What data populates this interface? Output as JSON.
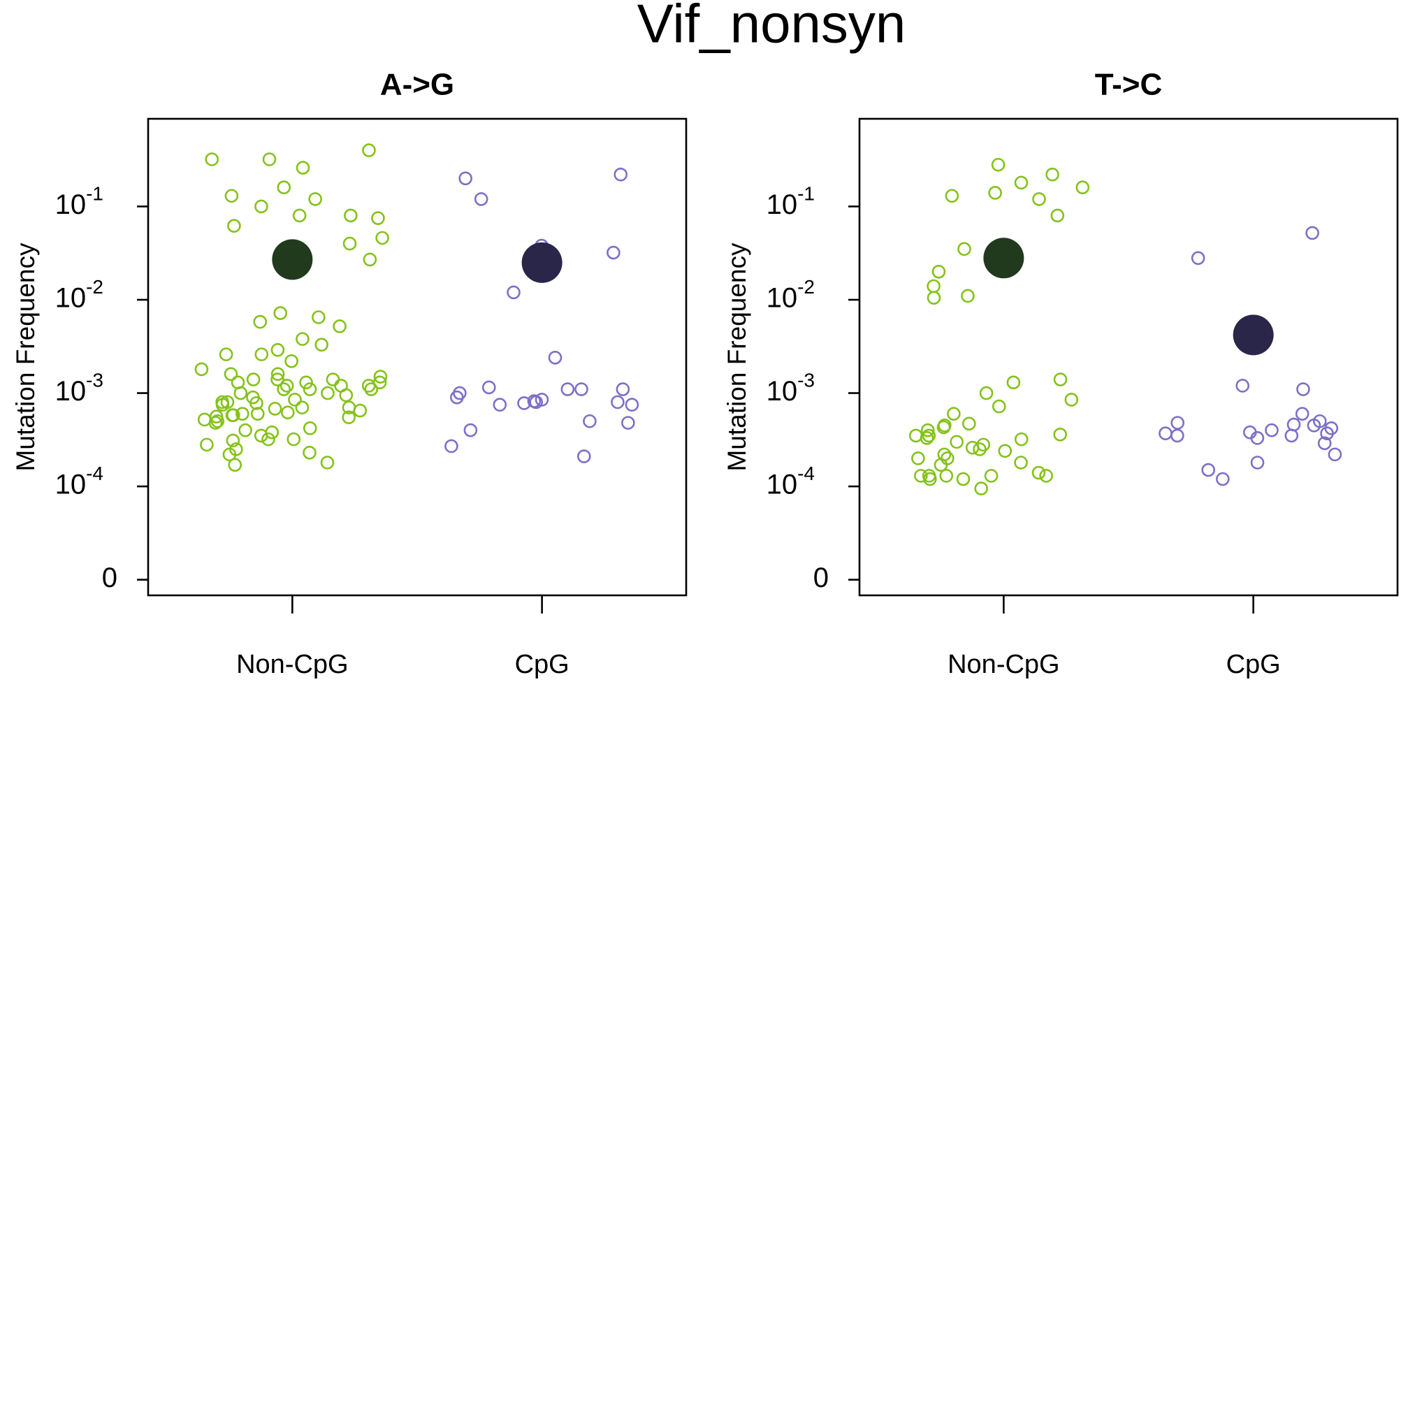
{
  "title": "Vif_nonsyn",
  "chart_data": [
    {
      "type": "strip",
      "title": "A->G",
      "ylabel": "Mutation Frequency",
      "log_scale": true,
      "categories": [
        "Non-CpG",
        "CpG"
      ],
      "ylim": [
        6.8e-06,
        0.87
      ],
      "yticks": [
        {
          "value": 1e-05,
          "label": "0"
        },
        {
          "value": 0.0001,
          "label": "10^-4"
        },
        {
          "value": 0.001,
          "label": "10^-3"
        },
        {
          "value": 0.01,
          "label": "10^-2"
        },
        {
          "value": 0.1,
          "label": "10^-1"
        }
      ],
      "groups": [
        {
          "color": "#84c21a",
          "mean": 0.027,
          "mean_color": "#213a1e",
          "values": [
            0.4,
            0.32,
            0.26,
            0.32,
            0.16,
            0.12,
            0.13,
            0.1,
            0.08,
            0.075,
            0.08,
            0.062,
            0.046,
            0.04,
            0.032,
            0.027,
            0.0072,
            0.0065,
            0.0058,
            0.0052,
            0.0038,
            0.0033,
            0.0029,
            0.0026,
            0.0026,
            0.0022,
            0.0018,
            0.0016,
            0.0016,
            0.0015,
            0.0014,
            0.0014,
            0.0014,
            0.0013,
            0.0013,
            0.0013,
            0.0012,
            0.0012,
            0.0012,
            0.0011,
            0.0011,
            0.0011,
            0.001,
            0.001,
            0.00095,
            0.0009,
            0.00085,
            0.0008,
            0.0008,
            0.00078,
            0.00075,
            0.0007,
            0.0007,
            0.00068,
            0.00065,
            0.00062,
            0.0006,
            0.0006,
            0.00058,
            0.00058,
            0.00056,
            0.00055,
            0.00052,
            0.0005,
            0.00048,
            0.00042,
            0.0004,
            0.00038,
            0.00035,
            0.00032,
            0.00032,
            0.00031,
            0.00028,
            0.00025,
            0.00023,
            0.00022,
            0.00018,
            0.00017
          ]
        },
        {
          "color": "#7b70c8",
          "mean": 0.025,
          "mean_color": "#29264a",
          "values": [
            0.22,
            0.2,
            0.12,
            0.038,
            0.032,
            0.012,
            0.0024,
            0.0011,
            0.0011,
            0.00115,
            0.0011,
            0.001,
            0.0009,
            0.00085,
            0.00082,
            0.0008,
            0.0008,
            0.00078,
            0.00075,
            0.00075,
            0.0005,
            0.00048,
            0.0004,
            0.00027,
            0.00021
          ]
        }
      ]
    },
    {
      "type": "strip",
      "title": "T->C",
      "ylabel": "Mutation Frequency",
      "log_scale": true,
      "categories": [
        "Non-CpG",
        "CpG"
      ],
      "ylim": [
        6.8e-06,
        0.87
      ],
      "yticks": [
        {
          "value": 1e-05,
          "label": "0"
        },
        {
          "value": 0.0001,
          "label": "10^-4"
        },
        {
          "value": 0.001,
          "label": "10^-3"
        },
        {
          "value": 0.01,
          "label": "10^-2"
        },
        {
          "value": 0.1,
          "label": "10^-1"
        }
      ],
      "groups": [
        {
          "color": "#84c21a",
          "mean": 0.028,
          "mean_color": "#213a1e",
          "values": [
            0.28,
            0.22,
            0.18,
            0.16,
            0.14,
            0.13,
            0.12,
            0.08,
            0.035,
            0.033,
            0.02,
            0.014,
            0.011,
            0.0105,
            0.0014,
            0.0013,
            0.001,
            0.00085,
            0.00072,
            0.0006,
            0.00047,
            0.00045,
            0.00043,
            0.0004,
            0.00036,
            0.00035,
            0.00035,
            0.00033,
            0.00032,
            0.0003,
            0.00028,
            0.00026,
            0.00025,
            0.00024,
            0.00022,
            0.0002,
            0.0002,
            0.00018,
            0.00017,
            0.00014,
            0.00013,
            0.00013,
            0.00013,
            0.00013,
            0.00013,
            0.00012,
            0.00012,
            9.5e-05
          ]
        },
        {
          "color": "#7b70c8",
          "mean": 0.0042,
          "mean_color": "#29264a",
          "values": [
            0.052,
            0.028,
            0.0012,
            0.0011,
            0.0006,
            0.0005,
            0.00048,
            0.00046,
            0.00045,
            0.00042,
            0.0004,
            0.00038,
            0.00037,
            0.00037,
            0.00035,
            0.00035,
            0.00033,
            0.00029,
            0.00022,
            0.00018,
            0.00015,
            0.00012
          ]
        }
      ]
    }
  ]
}
